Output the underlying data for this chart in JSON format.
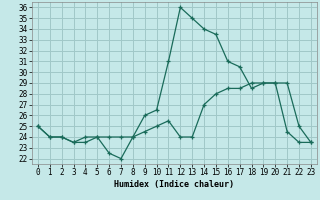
{
  "xlabel": "Humidex (Indice chaleur)",
  "background_color": "#c5e8e8",
  "grid_color": "#a0c8c8",
  "line_color": "#1a6b5a",
  "xlim": [
    -0.5,
    23.5
  ],
  "ylim": [
    21.5,
    36.5
  ],
  "xticks": [
    0,
    1,
    2,
    3,
    4,
    5,
    6,
    7,
    8,
    9,
    10,
    11,
    12,
    13,
    14,
    15,
    16,
    17,
    18,
    19,
    20,
    21,
    22,
    23
  ],
  "yticks": [
    22,
    23,
    24,
    25,
    26,
    27,
    28,
    29,
    30,
    31,
    32,
    33,
    34,
    35,
    36
  ],
  "series1_x": [
    0,
    1,
    2,
    3,
    4,
    5,
    6,
    7,
    8,
    9,
    10,
    11,
    12,
    13,
    14,
    15,
    16,
    17,
    18,
    19,
    20,
    21,
    22,
    23
  ],
  "series1_y": [
    25.0,
    24.0,
    24.0,
    23.5,
    24.0,
    24.0,
    22.5,
    22.0,
    24.0,
    26.0,
    26.5,
    31.0,
    36.0,
    35.0,
    34.0,
    33.5,
    31.0,
    30.5,
    28.5,
    29.0,
    29.0,
    29.0,
    25.0,
    23.5
  ],
  "series2_x": [
    0,
    1,
    2,
    3,
    4,
    5,
    6,
    7,
    8,
    9,
    10,
    11,
    12,
    13,
    14,
    15,
    16,
    17,
    18,
    19,
    20,
    21,
    22,
    23
  ],
  "series2_y": [
    25.0,
    24.0,
    24.0,
    23.5,
    23.5,
    24.0,
    24.0,
    24.0,
    24.0,
    24.5,
    25.0,
    25.5,
    24.0,
    24.0,
    27.0,
    28.0,
    28.5,
    28.5,
    29.0,
    29.0,
    29.0,
    24.5,
    23.5,
    23.5
  ]
}
